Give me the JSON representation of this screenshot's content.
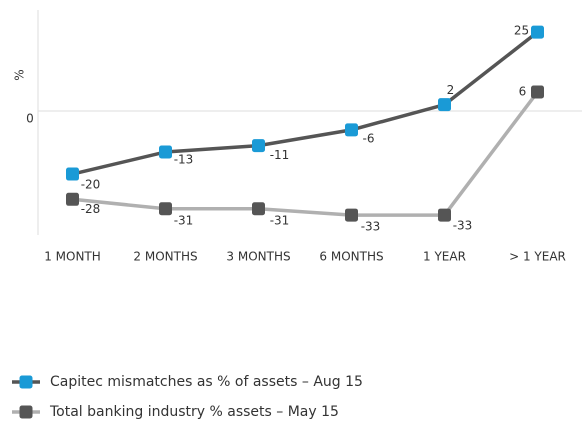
{
  "chart_data": {
    "type": "line",
    "y_label": "%",
    "categories": [
      "1 MONTH",
      "2 MONTHS",
      "3 MONTHS",
      "6 MONTHS",
      "1 YEAR",
      "> 1 YEAR"
    ],
    "series": [
      {
        "name": "Capitec mismatches as % of assets – Aug 15",
        "color": "#555555",
        "marker_color": "#1a9ad6",
        "values": [
          -20,
          -13,
          -11,
          -6,
          2,
          25
        ]
      },
      {
        "name": "Total banking industry % assets – May 15",
        "color": "#b0b0b0",
        "marker_color": "#555555",
        "values": [
          -28,
          -31,
          -31,
          -33,
          -33,
          6
        ]
      }
    ],
    "ylim": [
      -39,
      32
    ],
    "yticks": [
      0
    ],
    "legend": "bottom-left"
  }
}
